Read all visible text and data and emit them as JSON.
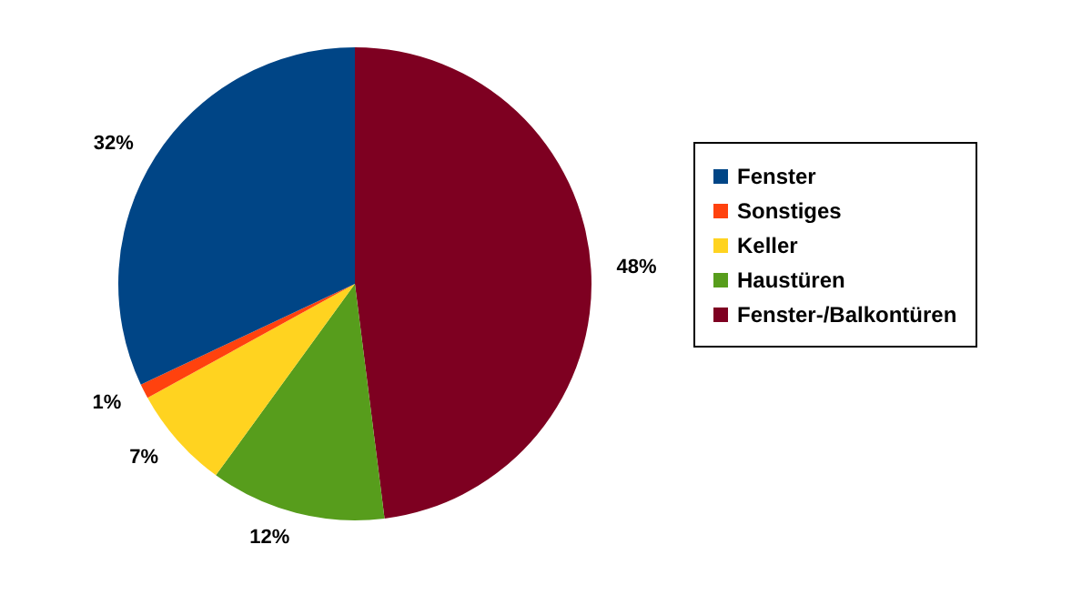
{
  "chart_data": {
    "type": "pie",
    "categories": [
      "Fenster",
      "Sonstiges",
      "Keller",
      "Haustüren",
      "Fenster-/Balkontüren"
    ],
    "values": [
      32,
      1,
      7,
      12,
      48
    ],
    "colors": [
      "#004586",
      "#ff420e",
      "#ffd320",
      "#579d1c",
      "#7e0021"
    ],
    "value_labels": [
      "32%",
      "1%",
      "7%",
      "12%",
      "48%"
    ],
    "legend": "right"
  }
}
